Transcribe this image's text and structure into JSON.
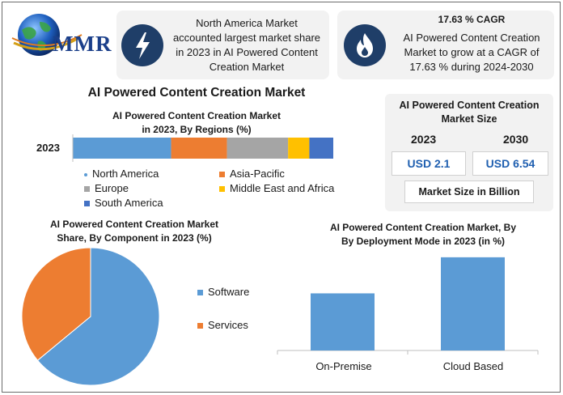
{
  "logo": {
    "text": "MMR"
  },
  "callout1": {
    "text_lines": [
      "North America Market",
      "accounted largest market share",
      "in 2023 in AI Powered Content",
      "Creation Market"
    ],
    "icon": "lightning-bolt-icon"
  },
  "callout2": {
    "heading": "17.63 % CAGR",
    "text_lines": [
      "AI Powered Content Creation",
      "Market to grow at a CAGR of",
      "17.63 % during 2024-2030"
    ],
    "icon": "flame-icon"
  },
  "main_title": "AI Powered Content Creation Market",
  "size_panel": {
    "title_lines": [
      "AI Powered Content Creation",
      "Market Size"
    ],
    "year_a": "2023",
    "year_b": "2030",
    "value_a": "USD 2.1",
    "value_b": "USD 6.54",
    "footer": "Market Size in Billion"
  },
  "colors": {
    "blue": "#5b9bd5",
    "orange": "#ed7d31",
    "gray": "#a5a5a5",
    "yellow": "#ffc000",
    "darkblue": "#4472c4",
    "navy": "#1f3e68"
  },
  "chart_data": [
    {
      "type": "bar",
      "orientation": "horizontal-stacked",
      "title_lines": [
        "AI Powered Content Creation Market",
        "in 2023, By Regions (%)"
      ],
      "categories": [
        "2023"
      ],
      "series": [
        {
          "name": "North America",
          "values": [
            37
          ],
          "color": "#5b9bd5"
        },
        {
          "name": "Asia-Pacific",
          "values": [
            21
          ],
          "color": "#ed7d31"
        },
        {
          "name": "Europe",
          "values": [
            23
          ],
          "color": "#a5a5a5"
        },
        {
          "name": "Middle East and Africa",
          "values": [
            8
          ],
          "color": "#ffc000"
        },
        {
          "name": "South America",
          "values": [
            9
          ],
          "color": "#4472c4"
        }
      ],
      "legend_rows": [
        [
          "North America",
          "Asia-Pacific"
        ],
        [
          "Europe",
          "Middle East and Africa"
        ],
        [
          "South America"
        ]
      ],
      "legend_position": "bottom"
    },
    {
      "type": "pie",
      "title_lines": [
        "AI Powered Content Creation Market",
        "Share, By Component in 2023  (%)"
      ],
      "categories": [
        "Software",
        "Services"
      ],
      "values": [
        64,
        36
      ],
      "colors": [
        "#5b9bd5",
        "#ed7d31"
      ],
      "legend_position": "right"
    },
    {
      "type": "bar",
      "title_lines": [
        "AI Powered Content Creation Market, By",
        "By Deployment Mode in 2023 (in %)"
      ],
      "categories": [
        "On-Premise",
        "Cloud Based"
      ],
      "values": [
        38,
        62
      ],
      "ylim": [
        0,
        70
      ],
      "color": "#5b9bd5",
      "grid": false
    }
  ]
}
